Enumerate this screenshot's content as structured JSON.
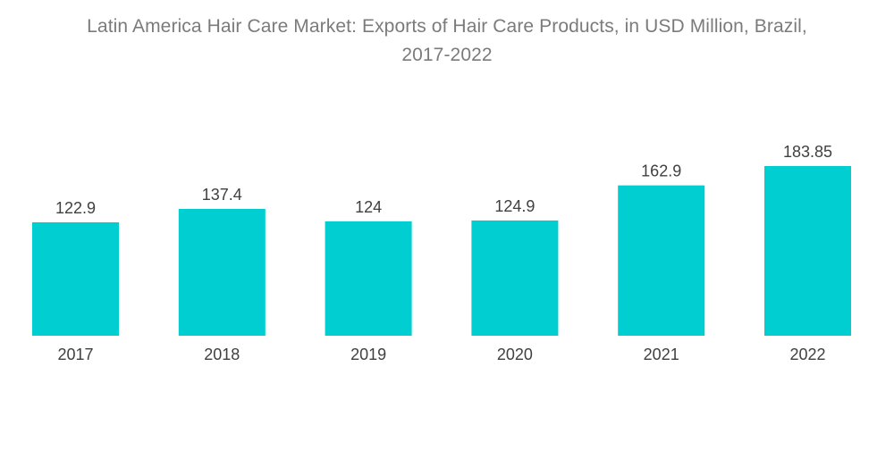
{
  "chart_data": {
    "type": "bar",
    "title_lines": [
      "Latin America Hair Care Market: Exports of Hair Care Products, in USD Million, Brazil,",
      "2017-2022"
    ],
    "categories": [
      "2017",
      "2018",
      "2019",
      "2020",
      "2021",
      "2022"
    ],
    "values": [
      122.9,
      137.4,
      124,
      124.9,
      162.9,
      183.85
    ],
    "value_labels": [
      "122.9",
      "137.4",
      "124",
      "124.9",
      "162.9",
      "183.85"
    ],
    "xlabel": "",
    "ylabel": "",
    "ylim": [
      0,
      183.85
    ],
    "grid": false,
    "legend": "none",
    "bar_color": "#00ced1"
  }
}
